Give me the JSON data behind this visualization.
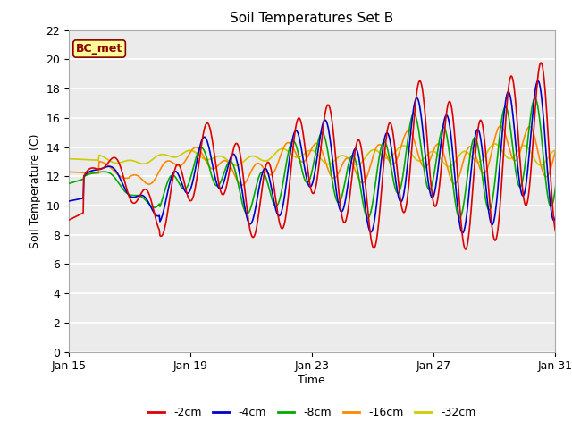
{
  "title": "Soil Temperatures Set B",
  "xlabel": "Time",
  "ylabel": "Soil Temperature (C)",
  "ylim": [
    0,
    22
  ],
  "yticks": [
    0,
    2,
    4,
    6,
    8,
    10,
    12,
    14,
    16,
    18,
    20,
    22
  ],
  "x_tick_labels": [
    "Jan 15",
    "Jan 19",
    "Jan 23",
    "Jan 27",
    "Jan 31"
  ],
  "x_tick_positions": [
    0,
    4,
    8,
    12,
    16
  ],
  "annotation_text": "BC_met",
  "annotation_bg": "#FFFF99",
  "annotation_border": "#8B0000",
  "plot_bg": "#EBEBEB",
  "fig_bg": "#FFFFFF",
  "colors": {
    "-2cm": "#DD0000",
    "-4cm": "#0000CC",
    "-8cm": "#00AA00",
    "-16cm": "#FF8800",
    "-32cm": "#CCCC00"
  },
  "line_width": 1.2
}
